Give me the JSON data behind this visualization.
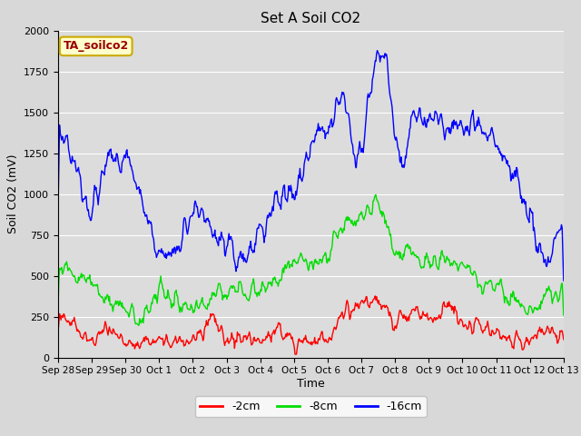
{
  "title": "Set A Soil CO2",
  "ylabel": "Soil CO2 (mV)",
  "xlabel": "Time",
  "annotation": "TA_soilco2",
  "ylim": [
    0,
    2000
  ],
  "bg_color": "#d8d8d8",
  "plot_bg_color": "#dcdcdc",
  "line_colors": {
    "cm2": "#ff0000",
    "cm8": "#00dd00",
    "cm16": "#0000ff"
  },
  "legend": [
    "-2cm",
    "-8cm",
    "-16cm"
  ],
  "xtick_labels": [
    "Sep 28",
    "Sep 29",
    "Sep 30",
    "Oct 1",
    "Oct 2",
    "Oct 3",
    "Oct 4",
    "Oct 5",
    "Oct 6",
    "Oct 7",
    "Oct 8",
    "Oct 9",
    "Oct 10",
    "Oct 11",
    "Oct 12",
    "Oct 13"
  ],
  "grid_color": "#ffffff",
  "annotation_bg": "#ffffcc",
  "annotation_border": "#ccaa00",
  "annotation_fg": "#990000",
  "figsize": [
    6.4,
    4.8
  ],
  "dpi": 100
}
